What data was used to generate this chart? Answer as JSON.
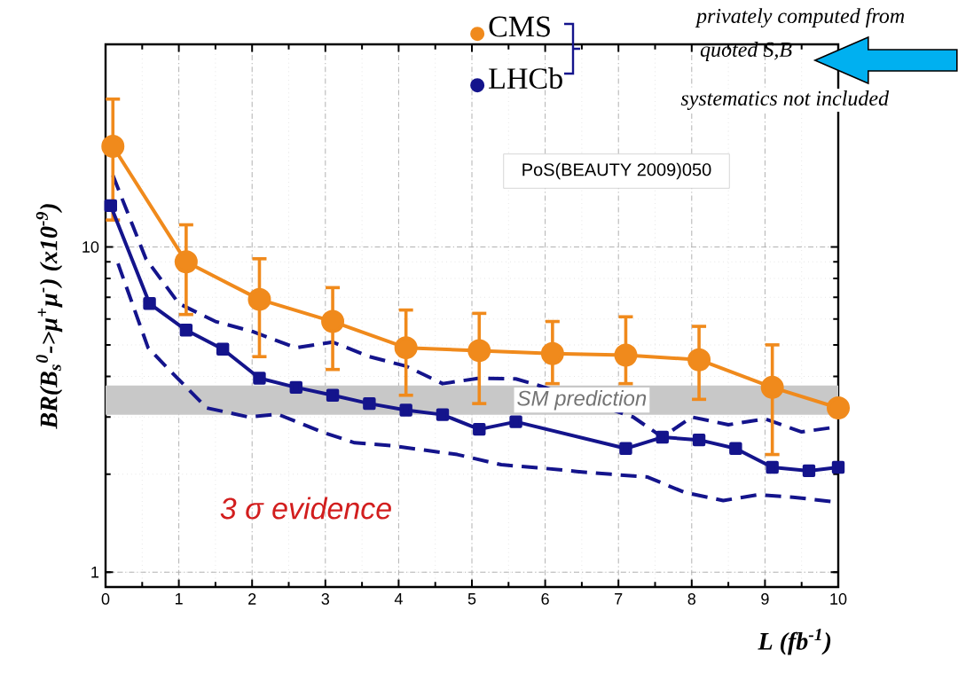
{
  "chart_data": {
    "type": "line",
    "xlabel": "L (fb$^{-1}$)",
    "ylabel": "BR(B$_{s}$$^{0}$->μ$^{+}$μ$^{-}$) (x10$^{-9}$)",
    "log": "y",
    "xlim": [
      0,
      10
    ],
    "ylim": [
      0.9,
      42
    ],
    "xticks": [
      0,
      1,
      2,
      3,
      4,
      5,
      6,
      7,
      8,
      9,
      10
    ],
    "yticks": [
      1,
      10
    ],
    "grid": true,
    "legend": "top",
    "series": [
      {
        "name": "CMS",
        "color": "#f08a1c",
        "marker": "circle",
        "line_style": "solid",
        "x": [
          0.1,
          1.1,
          2.1,
          3.1,
          4.1,
          5.1,
          6.1,
          7.1,
          8.1,
          9.1,
          10
        ],
        "values": [
          20.4,
          9.0,
          6.9,
          5.9,
          4.9,
          4.8,
          4.7,
          4.65,
          4.5,
          3.7,
          3.2
        ],
        "errors": [
          [
            12.1,
            28.5
          ],
          [
            6.2,
            11.7
          ],
          [
            4.6,
            9.2
          ],
          [
            4.2,
            7.5
          ],
          [
            3.5,
            6.4
          ],
          [
            3.3,
            6.25
          ],
          [
            3.8,
            5.9
          ],
          [
            3.8,
            6.1
          ],
          [
            3.4,
            5.7
          ],
          [
            2.3,
            5.0
          ],
          null
        ]
      },
      {
        "name": "LHCb",
        "color": "#14148c",
        "marker": "square",
        "line_style": "solid",
        "x": [
          0.07,
          0.6,
          1.1,
          1.6,
          2.1,
          2.6,
          3.1,
          3.6,
          4.1,
          4.6,
          5.1,
          5.6,
          7.1,
          7.6,
          8.1,
          8.6,
          9.1,
          9.6,
          10
        ],
        "values": [
          13.4,
          6.7,
          5.55,
          4.85,
          3.95,
          3.7,
          3.5,
          3.3,
          3.15,
          3.05,
          2.75,
          2.9,
          2.4,
          2.6,
          2.55,
          2.4,
          2.1,
          2.05,
          2.1
        ]
      },
      {
        "color": "#14148c",
        "marker": "none",
        "line_style": "dashed",
        "x": [
          0.1,
          0.55,
          1.0,
          1.5,
          2.0,
          2.6,
          3.1,
          3.6,
          4.1,
          4.6,
          5.1,
          5.6,
          5.9,
          7.2,
          7.6,
          8.0,
          8.5,
          9.0,
          9.5,
          9.9
        ],
        "values": [
          16.6,
          9.2,
          6.7,
          5.9,
          5.5,
          4.9,
          5.1,
          4.6,
          4.3,
          3.8,
          3.95,
          3.93,
          3.76,
          3.0,
          2.6,
          3.0,
          2.84,
          2.96,
          2.7,
          2.78
        ]
      },
      {
        "color": "#14148c",
        "marker": "none",
        "line_style": "dashed",
        "x": [
          0.17,
          0.58,
          0.82,
          1.38,
          1.95,
          2.35,
          2.95,
          3.4,
          3.9,
          4.37,
          4.8,
          5.4,
          5.95,
          6.43,
          6.9,
          7.4,
          7.9,
          8.43,
          8.9,
          9.38,
          9.9
        ],
        "values": [
          8.9,
          4.9,
          4.3,
          3.2,
          3.0,
          3.06,
          2.7,
          2.5,
          2.45,
          2.37,
          2.3,
          2.14,
          2.09,
          2.04,
          2.0,
          1.96,
          1.76,
          1.66,
          1.73,
          1.7,
          1.65
        ]
      }
    ],
    "bands": [
      {
        "axis": "y",
        "from": 3.05,
        "to": 3.75,
        "label": "SM prediction",
        "color": "#c8c8c8"
      }
    ],
    "annotations": [
      "privately computed from",
      "quoted S,B",
      "systematics not included",
      "PoS(BEAUTY 2009)050",
      "3 σ  evidence"
    ]
  }
}
